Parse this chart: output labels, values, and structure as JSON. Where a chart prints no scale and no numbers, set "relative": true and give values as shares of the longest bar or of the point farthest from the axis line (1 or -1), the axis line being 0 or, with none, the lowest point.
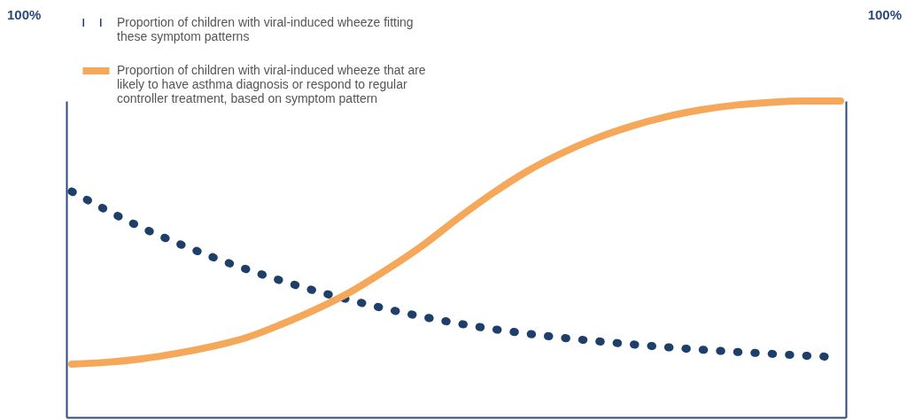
{
  "chart_data": {
    "type": "line",
    "relative": true,
    "legend": "top left",
    "annotations": [
      "100%",
      "100%"
    ],
    "categories": [
      null,
      null,
      null,
      null,
      null,
      null,
      null,
      null,
      null,
      null,
      null,
      null,
      null,
      null,
      null,
      null,
      null,
      null,
      null,
      null,
      null,
      null,
      null
    ],
    "series": [
      {
        "name": "Proportion of children with viral-induced wheeze fitting these symptom patterns",
        "color": "#1f3f6b",
        "line_style": "dotted",
        "values": [
          0.714,
          0.655,
          0.6,
          0.552,
          0.508,
          0.468,
          0.432,
          0.399,
          0.37,
          0.343,
          0.319,
          0.298,
          0.28,
          0.265,
          0.252,
          0.241,
          0.231,
          0.222,
          0.214,
          0.207,
          0.201,
          0.195,
          0.19
        ]
      },
      {
        "name": "Proportion of children with viral-induced wheeze that are likely to have asthma diagnosis or respond to regular controller treatment, based on symptom pattern",
        "color": "#f6a85a",
        "line_style": "solid",
        "values": [
          0.168,
          0.174,
          0.185,
          0.202,
          0.224,
          0.252,
          0.294,
          0.342,
          0.398,
          0.466,
          0.54,
          0.625,
          0.705,
          0.776,
          0.834,
          0.882,
          0.92,
          0.95,
          0.972,
          0.987,
          0.996,
          1,
          1
        ]
      }
    ]
  }
}
